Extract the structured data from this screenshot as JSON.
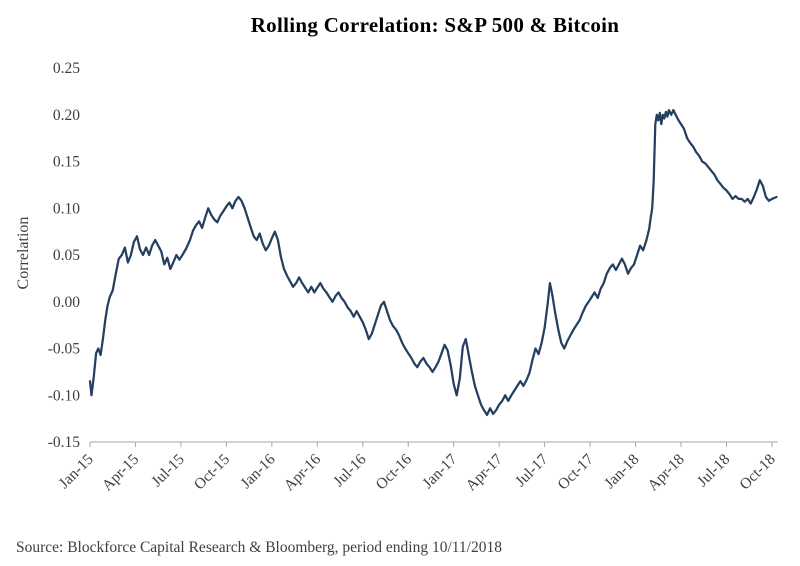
{
  "page": {
    "background": "#ffffff"
  },
  "footer": {
    "source": "Source: Blockforce Capital Research & Bloomberg, period ending 10/11/2018"
  },
  "chart_data": {
    "type": "line",
    "title": "Rolling Correlation: S&P 500 & Bitcoin",
    "xlabel": "",
    "ylabel": "Correlation",
    "ylim": [
      -0.15,
      0.25
    ],
    "xlim": [
      0,
      45.4
    ],
    "grid": false,
    "legend_position": "none",
    "line_color": "#243f5f",
    "axis_color": "#a6a6a6",
    "tick_label_color": "#3f3f3f",
    "y_ticks": [
      "0.25",
      "0.20",
      "0.15",
      "0.10",
      "0.05",
      "0.00",
      "-0.05",
      "-0.10",
      "-0.15"
    ],
    "y_tick_values": [
      0.25,
      0.2,
      0.15,
      0.1,
      0.05,
      0.0,
      -0.05,
      -0.1,
      -0.15
    ],
    "x_ticks": [
      "Jan-15",
      "Apr-15",
      "Jul-15",
      "Oct-15",
      "Jan-16",
      "Apr-16",
      "Jul-16",
      "Oct-16",
      "Jan-17",
      "Apr-17",
      "Jul-17",
      "Oct-17",
      "Jan-18",
      "Apr-18",
      "Jul-18",
      "Oct-18"
    ],
    "x_tick_positions": [
      0,
      3,
      6,
      9,
      12,
      15,
      18,
      21,
      24,
      27,
      30,
      33,
      36,
      39,
      42,
      45
    ],
    "series": [
      {
        "name": "Rolling Correlation S&P 500 & Bitcoin",
        "points": [
          [
            0.0,
            -0.085
          ],
          [
            0.1,
            -0.1
          ],
          [
            0.25,
            -0.08
          ],
          [
            0.4,
            -0.055
          ],
          [
            0.55,
            -0.05
          ],
          [
            0.7,
            -0.057
          ],
          [
            0.85,
            -0.04
          ],
          [
            1.0,
            -0.02
          ],
          [
            1.15,
            -0.005
          ],
          [
            1.3,
            0.005
          ],
          [
            1.5,
            0.012
          ],
          [
            1.7,
            0.03
          ],
          [
            1.9,
            0.046
          ],
          [
            2.1,
            0.05
          ],
          [
            2.3,
            0.058
          ],
          [
            2.5,
            0.042
          ],
          [
            2.7,
            0.05
          ],
          [
            2.9,
            0.064
          ],
          [
            3.1,
            0.07
          ],
          [
            3.3,
            0.056
          ],
          [
            3.5,
            0.05
          ],
          [
            3.7,
            0.058
          ],
          [
            3.9,
            0.05
          ],
          [
            4.1,
            0.06
          ],
          [
            4.3,
            0.066
          ],
          [
            4.5,
            0.06
          ],
          [
            4.7,
            0.054
          ],
          [
            4.9,
            0.04
          ],
          [
            5.1,
            0.047
          ],
          [
            5.3,
            0.035
          ],
          [
            5.5,
            0.042
          ],
          [
            5.7,
            0.05
          ],
          [
            5.9,
            0.045
          ],
          [
            6.1,
            0.05
          ],
          [
            6.35,
            0.057
          ],
          [
            6.6,
            0.066
          ],
          [
            6.8,
            0.076
          ],
          [
            7.0,
            0.082
          ],
          [
            7.2,
            0.086
          ],
          [
            7.4,
            0.079
          ],
          [
            7.6,
            0.09
          ],
          [
            7.8,
            0.1
          ],
          [
            8.0,
            0.093
          ],
          [
            8.2,
            0.088
          ],
          [
            8.4,
            0.085
          ],
          [
            8.6,
            0.092
          ],
          [
            8.8,
            0.097
          ],
          [
            9.0,
            0.102
          ],
          [
            9.2,
            0.106
          ],
          [
            9.4,
            0.1
          ],
          [
            9.6,
            0.108
          ],
          [
            9.8,
            0.112
          ],
          [
            10.0,
            0.108
          ],
          [
            10.2,
            0.1
          ],
          [
            10.4,
            0.09
          ],
          [
            10.6,
            0.08
          ],
          [
            10.8,
            0.07
          ],
          [
            11.0,
            0.066
          ],
          [
            11.2,
            0.073
          ],
          [
            11.4,
            0.062
          ],
          [
            11.6,
            0.055
          ],
          [
            11.8,
            0.06
          ],
          [
            12.0,
            0.068
          ],
          [
            12.2,
            0.075
          ],
          [
            12.4,
            0.066
          ],
          [
            12.6,
            0.048
          ],
          [
            12.8,
            0.035
          ],
          [
            13.0,
            0.028
          ],
          [
            13.2,
            0.022
          ],
          [
            13.4,
            0.016
          ],
          [
            13.6,
            0.02
          ],
          [
            13.8,
            0.026
          ],
          [
            14.0,
            0.02
          ],
          [
            14.2,
            0.015
          ],
          [
            14.4,
            0.01
          ],
          [
            14.6,
            0.016
          ],
          [
            14.8,
            0.01
          ],
          [
            15.0,
            0.015
          ],
          [
            15.2,
            0.02
          ],
          [
            15.4,
            0.014
          ],
          [
            15.6,
            0.01
          ],
          [
            15.8,
            0.005
          ],
          [
            16.0,
            0.0
          ],
          [
            16.2,
            0.006
          ],
          [
            16.4,
            0.01
          ],
          [
            16.6,
            0.004
          ],
          [
            16.8,
            0.0
          ],
          [
            17.0,
            -0.006
          ],
          [
            17.2,
            -0.01
          ],
          [
            17.4,
            -0.016
          ],
          [
            17.6,
            -0.01
          ],
          [
            17.8,
            -0.016
          ],
          [
            18.0,
            -0.022
          ],
          [
            18.2,
            -0.03
          ],
          [
            18.4,
            -0.04
          ],
          [
            18.6,
            -0.034
          ],
          [
            18.8,
            -0.024
          ],
          [
            19.0,
            -0.014
          ],
          [
            19.2,
            -0.004
          ],
          [
            19.4,
            0.0
          ],
          [
            19.6,
            -0.01
          ],
          [
            19.8,
            -0.02
          ],
          [
            20.0,
            -0.026
          ],
          [
            20.2,
            -0.03
          ],
          [
            20.4,
            -0.036
          ],
          [
            20.6,
            -0.044
          ],
          [
            20.8,
            -0.05
          ],
          [
            21.0,
            -0.055
          ],
          [
            21.2,
            -0.06
          ],
          [
            21.4,
            -0.066
          ],
          [
            21.6,
            -0.07
          ],
          [
            21.8,
            -0.064
          ],
          [
            22.0,
            -0.06
          ],
          [
            22.2,
            -0.066
          ],
          [
            22.4,
            -0.07
          ],
          [
            22.6,
            -0.075
          ],
          [
            22.8,
            -0.07
          ],
          [
            23.0,
            -0.064
          ],
          [
            23.2,
            -0.055
          ],
          [
            23.4,
            -0.046
          ],
          [
            23.6,
            -0.052
          ],
          [
            23.8,
            -0.068
          ],
          [
            24.0,
            -0.088
          ],
          [
            24.2,
            -0.1
          ],
          [
            24.4,
            -0.082
          ],
          [
            24.6,
            -0.048
          ],
          [
            24.8,
            -0.04
          ],
          [
            25.0,
            -0.058
          ],
          [
            25.2,
            -0.075
          ],
          [
            25.4,
            -0.09
          ],
          [
            25.6,
            -0.1
          ],
          [
            25.8,
            -0.11
          ],
          [
            26.0,
            -0.116
          ],
          [
            26.2,
            -0.121
          ],
          [
            26.4,
            -0.114
          ],
          [
            26.6,
            -0.12
          ],
          [
            26.8,
            -0.116
          ],
          [
            27.0,
            -0.11
          ],
          [
            27.2,
            -0.106
          ],
          [
            27.4,
            -0.1
          ],
          [
            27.6,
            -0.106
          ],
          [
            27.8,
            -0.1
          ],
          [
            28.0,
            -0.095
          ],
          [
            28.2,
            -0.09
          ],
          [
            28.4,
            -0.085
          ],
          [
            28.6,
            -0.09
          ],
          [
            28.8,
            -0.084
          ],
          [
            29.0,
            -0.076
          ],
          [
            29.2,
            -0.062
          ],
          [
            29.4,
            -0.05
          ],
          [
            29.6,
            -0.056
          ],
          [
            29.8,
            -0.044
          ],
          [
            30.0,
            -0.028
          ],
          [
            30.2,
            -0.002
          ],
          [
            30.35,
            0.02
          ],
          [
            30.5,
            0.008
          ],
          [
            30.7,
            -0.012
          ],
          [
            30.9,
            -0.03
          ],
          [
            31.1,
            -0.044
          ],
          [
            31.3,
            -0.05
          ],
          [
            31.5,
            -0.042
          ],
          [
            31.7,
            -0.036
          ],
          [
            31.9,
            -0.03
          ],
          [
            32.1,
            -0.025
          ],
          [
            32.3,
            -0.02
          ],
          [
            32.5,
            -0.012
          ],
          [
            32.7,
            -0.005
          ],
          [
            32.9,
            0.0
          ],
          [
            33.1,
            0.005
          ],
          [
            33.3,
            0.01
          ],
          [
            33.5,
            0.004
          ],
          [
            33.7,
            0.014
          ],
          [
            33.9,
            0.02
          ],
          [
            34.1,
            0.03
          ],
          [
            34.3,
            0.036
          ],
          [
            34.5,
            0.04
          ],
          [
            34.7,
            0.034
          ],
          [
            34.9,
            0.04
          ],
          [
            35.1,
            0.046
          ],
          [
            35.3,
            0.04
          ],
          [
            35.5,
            0.03
          ],
          [
            35.7,
            0.036
          ],
          [
            35.9,
            0.04
          ],
          [
            36.1,
            0.05
          ],
          [
            36.3,
            0.06
          ],
          [
            36.5,
            0.055
          ],
          [
            36.7,
            0.065
          ],
          [
            36.9,
            0.078
          ],
          [
            37.0,
            0.09
          ],
          [
            37.1,
            0.1
          ],
          [
            37.2,
            0.13
          ],
          [
            37.3,
            0.19
          ],
          [
            37.4,
            0.2
          ],
          [
            37.5,
            0.194
          ],
          [
            37.6,
            0.202
          ],
          [
            37.7,
            0.19
          ],
          [
            37.8,
            0.2
          ],
          [
            37.9,
            0.196
          ],
          [
            38.0,
            0.203
          ],
          [
            38.1,
            0.198
          ],
          [
            38.2,
            0.205
          ],
          [
            38.35,
            0.2
          ],
          [
            38.5,
            0.205
          ],
          [
            38.65,
            0.2
          ],
          [
            38.8,
            0.195
          ],
          [
            39.0,
            0.19
          ],
          [
            39.2,
            0.185
          ],
          [
            39.4,
            0.175
          ],
          [
            39.6,
            0.17
          ],
          [
            39.8,
            0.166
          ],
          [
            40.0,
            0.16
          ],
          [
            40.2,
            0.156
          ],
          [
            40.4,
            0.15
          ],
          [
            40.6,
            0.148
          ],
          [
            40.8,
            0.144
          ],
          [
            41.0,
            0.14
          ],
          [
            41.2,
            0.136
          ],
          [
            41.4,
            0.13
          ],
          [
            41.6,
            0.126
          ],
          [
            41.8,
            0.122
          ],
          [
            42.0,
            0.119
          ],
          [
            42.2,
            0.115
          ],
          [
            42.4,
            0.11
          ],
          [
            42.6,
            0.113
          ],
          [
            42.8,
            0.11
          ],
          [
            43.0,
            0.11
          ],
          [
            43.2,
            0.107
          ],
          [
            43.4,
            0.11
          ],
          [
            43.6,
            0.105
          ],
          [
            43.8,
            0.112
          ],
          [
            44.0,
            0.12
          ],
          [
            44.2,
            0.13
          ],
          [
            44.4,
            0.124
          ],
          [
            44.6,
            0.112
          ],
          [
            44.8,
            0.108
          ],
          [
            45.0,
            0.11
          ],
          [
            45.3,
            0.112
          ]
        ]
      }
    ]
  }
}
